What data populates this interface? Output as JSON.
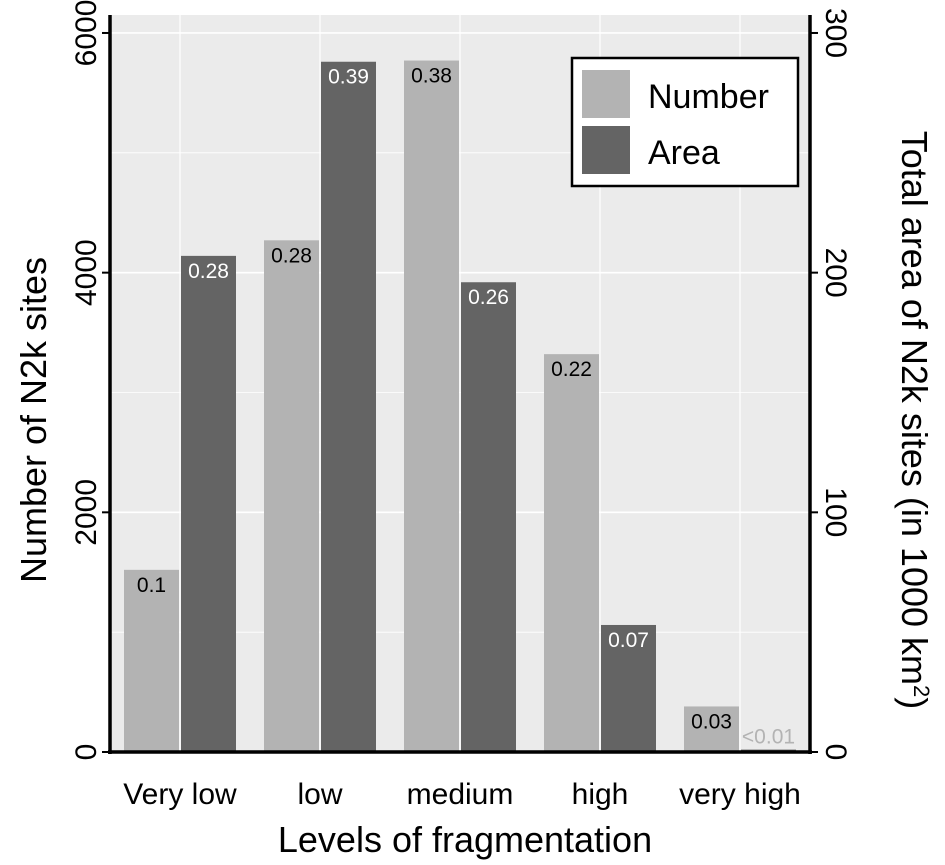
{
  "chart_data": {
    "type": "bar",
    "title": "",
    "xlabel": "Levels of fragmentation",
    "ylabel": "Number of N2k sites",
    "ylabel_right": "Total area of N2k sites (in 1000 km²)",
    "categories": [
      "Very low",
      "low",
      "medium",
      "high",
      "very high"
    ],
    "series": [
      {
        "name": "Number",
        "axis": "left",
        "color": "#b3b3b3",
        "values": [
          1520,
          4270,
          5770,
          3320,
          380
        ],
        "labels": [
          "0.1",
          "0.28",
          "0.38",
          "0.22",
          "0.03"
        ]
      },
      {
        "name": "Area",
        "axis": "right",
        "color": "#646464",
        "values": [
          207,
          288,
          196,
          53,
          1
        ],
        "labels": [
          "0.28",
          "0.39",
          "0.26",
          "0.07",
          "<0.01"
        ]
      }
    ],
    "ylim": [
      0,
      6150
    ],
    "ylim_right": [
      0,
      307.5
    ],
    "yticks": [
      0,
      2000,
      4000,
      6000
    ],
    "yticks_right": [
      0,
      100,
      200,
      300
    ],
    "grid": true,
    "legend_position": "top-right"
  }
}
